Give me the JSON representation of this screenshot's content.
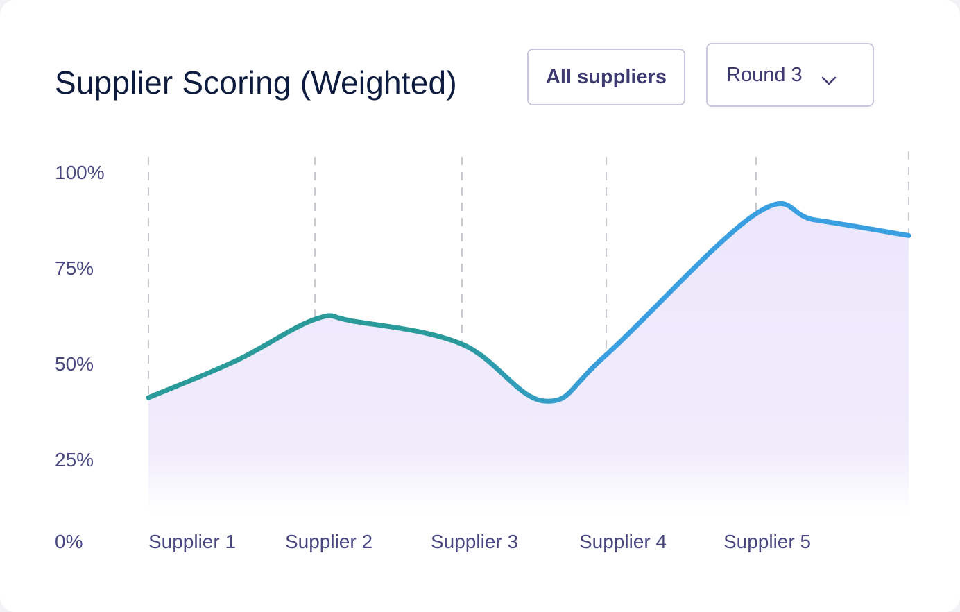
{
  "header": {
    "title": "Supplier Scoring (Weighted)",
    "filter_label": "All suppliers",
    "round_label": "Round 3",
    "round_icon": "chevron-down-icon"
  },
  "chart_data": {
    "type": "area",
    "title": "Supplier Scoring (Weighted)",
    "categories": [
      "Supplier 1",
      "Supplier 2",
      "Supplier 3",
      "Supplier 4",
      "Supplier 5",
      ""
    ],
    "x_tick_labels": [
      "Supplier 1",
      "Supplier 2",
      "Supplier 3",
      "Supplier 4",
      "Supplier 5"
    ],
    "series": [
      {
        "values": [
          33,
          57,
          50,
          47,
          84,
          80
        ]
      }
    ],
    "y_ticks": [
      "100%",
      "75%",
      "50%",
      "25%",
      "0%"
    ],
    "y_tick_values": [
      100,
      75,
      50,
      25,
      0
    ],
    "ylim": [
      0,
      100
    ],
    "grid": "vertical dashed",
    "line_gradient": [
      "#2a9a9a",
      "#3a9fe0"
    ],
    "fill_color": "#ece6fb"
  }
}
